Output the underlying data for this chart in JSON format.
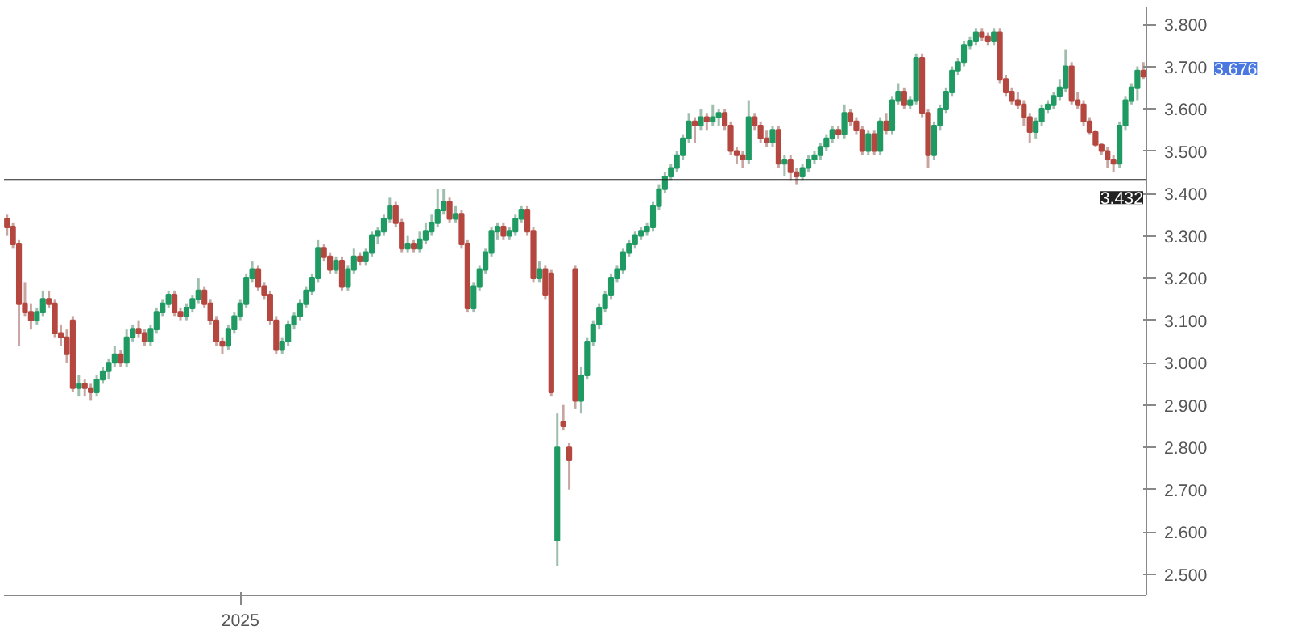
{
  "chart_data": {
    "type": "candlestick",
    "categories": [
      null,
      null,
      null,
      null,
      null,
      null,
      null,
      null,
      null,
      null,
      null,
      null,
      null,
      null,
      null,
      null,
      null,
      null,
      null,
      null,
      null,
      null,
      null,
      null,
      null,
      null,
      null,
      null,
      null,
      null,
      null,
      null,
      null,
      null,
      null,
      null,
      null,
      null,
      null,
      null,
      null,
      null,
      null,
      null,
      null,
      null,
      null,
      null,
      null,
      null,
      null,
      null,
      null,
      null,
      null,
      null,
      null,
      null,
      null,
      null,
      null,
      null,
      null,
      null,
      null,
      null,
      null,
      null,
      null,
      null,
      null,
      null,
      null,
      null,
      null,
      null,
      null,
      null,
      null,
      null,
      null,
      null,
      null,
      null,
      null,
      null,
      null,
      null,
      null,
      null,
      null,
      null,
      null,
      null,
      null,
      null,
      null,
      null,
      null,
      null,
      null,
      null,
      null,
      null,
      null,
      null,
      null,
      null,
      null,
      null,
      null,
      null,
      null,
      null,
      null,
      null,
      null,
      null,
      null,
      null,
      null,
      null,
      null,
      null,
      null,
      null,
      null,
      null,
      null,
      null,
      null,
      null,
      null,
      null,
      null,
      null,
      null,
      null,
      null,
      null,
      null,
      null,
      null,
      null,
      null,
      null,
      null,
      null,
      null,
      null,
      null,
      null,
      null,
      null,
      null,
      null,
      null,
      null,
      null,
      null,
      null,
      null,
      null,
      null,
      null,
      null,
      null,
      null,
      null,
      null,
      null,
      null,
      null,
      null,
      null,
      null,
      null,
      null,
      null,
      null,
      null,
      null,
      null,
      null,
      null,
      null,
      null,
      null,
      null,
      null,
      null
    ],
    "ohlc": [
      [
        3.34,
        3.35,
        3.3,
        3.32
      ],
      [
        3.32,
        3.33,
        3.27,
        3.28
      ],
      [
        3.28,
        3.29,
        3.04,
        3.14
      ],
      [
        3.14,
        3.19,
        3.11,
        3.12
      ],
      [
        3.12,
        3.14,
        3.08,
        3.1
      ],
      [
        3.1,
        3.13,
        3.09,
        3.12
      ],
      [
        3.12,
        3.17,
        3.11,
        3.15
      ],
      [
        3.15,
        3.17,
        3.13,
        3.14
      ],
      [
        3.14,
        3.15,
        3.06,
        3.07
      ],
      [
        3.07,
        3.09,
        3.04,
        3.06
      ],
      [
        3.06,
        3.08,
        3.0,
        3.02
      ],
      [
        3.1,
        3.11,
        2.93,
        2.94
      ],
      [
        2.94,
        2.97,
        2.92,
        2.95
      ],
      [
        2.95,
        2.96,
        2.92,
        2.94
      ],
      [
        2.94,
        2.95,
        2.91,
        2.93
      ],
      [
        2.93,
        2.97,
        2.92,
        2.96
      ],
      [
        2.96,
        2.99,
        2.95,
        2.98
      ],
      [
        2.98,
        3.01,
        2.96,
        3.0
      ],
      [
        3.0,
        3.04,
        2.99,
        3.02
      ],
      [
        3.02,
        3.03,
        2.99,
        3.0
      ],
      [
        3.0,
        3.08,
        2.99,
        3.06
      ],
      [
        3.06,
        3.09,
        3.05,
        3.08
      ],
      [
        3.08,
        3.1,
        3.06,
        3.07
      ],
      [
        3.07,
        3.08,
        3.04,
        3.05
      ],
      [
        3.05,
        3.09,
        3.04,
        3.08
      ],
      [
        3.08,
        3.13,
        3.07,
        3.12
      ],
      [
        3.12,
        3.15,
        3.11,
        3.14
      ],
      [
        3.14,
        3.17,
        3.13,
        3.16
      ],
      [
        3.16,
        3.17,
        3.11,
        3.12
      ],
      [
        3.12,
        3.13,
        3.1,
        3.11
      ],
      [
        3.11,
        3.14,
        3.1,
        3.13
      ],
      [
        3.13,
        3.16,
        3.12,
        3.15
      ],
      [
        3.15,
        3.2,
        3.14,
        3.17
      ],
      [
        3.17,
        3.18,
        3.13,
        3.14
      ],
      [
        3.14,
        3.15,
        3.09,
        3.1
      ],
      [
        3.1,
        3.11,
        3.04,
        3.05
      ],
      [
        3.05,
        3.06,
        3.02,
        3.04
      ],
      [
        3.04,
        3.09,
        3.03,
        3.08
      ],
      [
        3.08,
        3.12,
        3.07,
        3.11
      ],
      [
        3.11,
        3.15,
        3.1,
        3.14
      ],
      [
        3.14,
        3.21,
        3.13,
        3.2
      ],
      [
        3.2,
        3.24,
        3.19,
        3.22
      ],
      [
        3.22,
        3.23,
        3.17,
        3.18
      ],
      [
        3.18,
        3.19,
        3.15,
        3.16
      ],
      [
        3.16,
        3.17,
        3.09,
        3.1
      ],
      [
        3.1,
        3.11,
        3.02,
        3.03
      ],
      [
        3.03,
        3.06,
        3.02,
        3.05
      ],
      [
        3.05,
        3.1,
        3.04,
        3.09
      ],
      [
        3.09,
        3.12,
        3.08,
        3.11
      ],
      [
        3.11,
        3.15,
        3.1,
        3.14
      ],
      [
        3.14,
        3.18,
        3.13,
        3.17
      ],
      [
        3.17,
        3.21,
        3.16,
        3.2
      ],
      [
        3.2,
        3.29,
        3.19,
        3.27
      ],
      [
        3.27,
        3.28,
        3.24,
        3.25
      ],
      [
        3.25,
        3.26,
        3.21,
        3.22
      ],
      [
        3.22,
        3.25,
        3.21,
        3.24
      ],
      [
        3.24,
        3.25,
        3.17,
        3.18
      ],
      [
        3.18,
        3.23,
        3.17,
        3.22
      ],
      [
        3.22,
        3.27,
        3.21,
        3.25
      ],
      [
        3.25,
        3.26,
        3.23,
        3.24
      ],
      [
        3.24,
        3.27,
        3.23,
        3.26
      ],
      [
        3.26,
        3.31,
        3.25,
        3.3
      ],
      [
        3.3,
        3.32,
        3.28,
        3.31
      ],
      [
        3.31,
        3.35,
        3.3,
        3.34
      ],
      [
        3.34,
        3.39,
        3.33,
        3.37
      ],
      [
        3.37,
        3.38,
        3.32,
        3.33
      ],
      [
        3.33,
        3.34,
        3.26,
        3.27
      ],
      [
        3.27,
        3.3,
        3.26,
        3.28
      ],
      [
        3.28,
        3.29,
        3.26,
        3.27
      ],
      [
        3.27,
        3.31,
        3.26,
        3.29
      ],
      [
        3.29,
        3.33,
        3.28,
        3.31
      ],
      [
        3.31,
        3.35,
        3.3,
        3.33
      ],
      [
        3.33,
        3.41,
        3.32,
        3.36
      ],
      [
        3.36,
        3.41,
        3.35,
        3.38
      ],
      [
        3.38,
        3.39,
        3.33,
        3.34
      ],
      [
        3.34,
        3.37,
        3.33,
        3.35
      ],
      [
        3.35,
        3.36,
        3.27,
        3.28
      ],
      [
        3.28,
        3.29,
        3.12,
        3.13
      ],
      [
        3.13,
        3.19,
        3.12,
        3.18
      ],
      [
        3.18,
        3.23,
        3.17,
        3.22
      ],
      [
        3.22,
        3.27,
        3.21,
        3.26
      ],
      [
        3.26,
        3.32,
        3.25,
        3.31
      ],
      [
        3.31,
        3.33,
        3.29,
        3.32
      ],
      [
        3.32,
        3.33,
        3.29,
        3.3
      ],
      [
        3.3,
        3.32,
        3.29,
        3.31
      ],
      [
        3.31,
        3.35,
        3.3,
        3.34
      ],
      [
        3.34,
        3.37,
        3.33,
        3.36
      ],
      [
        3.36,
        3.37,
        3.3,
        3.31
      ],
      [
        3.31,
        3.32,
        3.19,
        3.2
      ],
      [
        3.2,
        3.24,
        3.19,
        3.22
      ],
      [
        3.22,
        3.23,
        3.15,
        3.16
      ],
      [
        3.21,
        3.22,
        2.92,
        2.93
      ],
      [
        2.58,
        2.88,
        2.52,
        2.8
      ],
      [
        2.86,
        2.9,
        2.84,
        2.85
      ],
      [
        2.8,
        2.81,
        2.7,
        2.77
      ],
      [
        3.22,
        3.23,
        2.89,
        2.91
      ],
      [
        2.91,
        2.99,
        2.88,
        2.97
      ],
      [
        2.97,
        3.06,
        2.96,
        3.05
      ],
      [
        3.05,
        3.1,
        3.04,
        3.09
      ],
      [
        3.09,
        3.14,
        3.08,
        3.13
      ],
      [
        3.13,
        3.17,
        3.12,
        3.16
      ],
      [
        3.16,
        3.21,
        3.15,
        3.2
      ],
      [
        3.2,
        3.23,
        3.19,
        3.22
      ],
      [
        3.22,
        3.27,
        3.21,
        3.26
      ],
      [
        3.26,
        3.29,
        3.25,
        3.28
      ],
      [
        3.28,
        3.31,
        3.27,
        3.3
      ],
      [
        3.3,
        3.32,
        3.29,
        3.31
      ],
      [
        3.31,
        3.33,
        3.3,
        3.32
      ],
      [
        3.32,
        3.38,
        3.31,
        3.37
      ],
      [
        3.37,
        3.42,
        3.36,
        3.41
      ],
      [
        3.41,
        3.45,
        3.4,
        3.44
      ],
      [
        3.44,
        3.47,
        3.43,
        3.46
      ],
      [
        3.46,
        3.5,
        3.45,
        3.49
      ],
      [
        3.49,
        3.54,
        3.48,
        3.53
      ],
      [
        3.53,
        3.59,
        3.52,
        3.57
      ],
      [
        3.57,
        3.58,
        3.52,
        3.56
      ],
      [
        3.56,
        3.6,
        3.55,
        3.58
      ],
      [
        3.58,
        3.59,
        3.55,
        3.57
      ],
      [
        3.57,
        3.61,
        3.56,
        3.58
      ],
      [
        3.58,
        3.6,
        3.56,
        3.59
      ],
      [
        3.59,
        3.6,
        3.55,
        3.56
      ],
      [
        3.56,
        3.57,
        3.49,
        3.5
      ],
      [
        3.5,
        3.51,
        3.47,
        3.49
      ],
      [
        3.49,
        3.5,
        3.46,
        3.48
      ],
      [
        3.48,
        3.62,
        3.47,
        3.58
      ],
      [
        3.58,
        3.59,
        3.55,
        3.56
      ],
      [
        3.56,
        3.57,
        3.52,
        3.53
      ],
      [
        3.53,
        3.55,
        3.51,
        3.52
      ],
      [
        3.52,
        3.56,
        3.51,
        3.55
      ],
      [
        3.55,
        3.56,
        3.46,
        3.47
      ],
      [
        3.47,
        3.49,
        3.44,
        3.48
      ],
      [
        3.48,
        3.49,
        3.43,
        3.45
      ],
      [
        3.45,
        3.46,
        3.42,
        3.44
      ],
      [
        3.44,
        3.47,
        3.43,
        3.46
      ],
      [
        3.46,
        3.49,
        3.45,
        3.48
      ],
      [
        3.48,
        3.5,
        3.47,
        3.49
      ],
      [
        3.49,
        3.52,
        3.48,
        3.51
      ],
      [
        3.51,
        3.54,
        3.5,
        3.53
      ],
      [
        3.53,
        3.56,
        3.52,
        3.55
      ],
      [
        3.55,
        3.56,
        3.53,
        3.54
      ],
      [
        3.54,
        3.61,
        3.53,
        3.59
      ],
      [
        3.59,
        3.6,
        3.56,
        3.57
      ],
      [
        3.57,
        3.58,
        3.54,
        3.55
      ],
      [
        3.55,
        3.56,
        3.49,
        3.5
      ],
      [
        3.5,
        3.55,
        3.49,
        3.54
      ],
      [
        3.54,
        3.55,
        3.49,
        3.5
      ],
      [
        3.5,
        3.58,
        3.49,
        3.57
      ],
      [
        3.57,
        3.59,
        3.54,
        3.55
      ],
      [
        3.55,
        3.63,
        3.54,
        3.62
      ],
      [
        3.62,
        3.66,
        3.61,
        3.64
      ],
      [
        3.64,
        3.65,
        3.6,
        3.61
      ],
      [
        3.61,
        3.63,
        3.6,
        3.62
      ],
      [
        3.62,
        3.73,
        3.61,
        3.72
      ],
      [
        3.72,
        3.73,
        3.58,
        3.59
      ],
      [
        3.59,
        3.6,
        3.46,
        3.49
      ],
      [
        3.49,
        3.57,
        3.48,
        3.56
      ],
      [
        3.56,
        3.61,
        3.55,
        3.6
      ],
      [
        3.6,
        3.65,
        3.59,
        3.64
      ],
      [
        3.64,
        3.7,
        3.63,
        3.69
      ],
      [
        3.69,
        3.72,
        3.68,
        3.71
      ],
      [
        3.71,
        3.76,
        3.7,
        3.75
      ],
      [
        3.75,
        3.77,
        3.74,
        3.76
      ],
      [
        3.76,
        3.79,
        3.75,
        3.78
      ],
      [
        3.78,
        3.79,
        3.76,
        3.77
      ],
      [
        3.77,
        3.78,
        3.75,
        3.76
      ],
      [
        3.76,
        3.79,
        3.75,
        3.78
      ],
      [
        3.78,
        3.79,
        3.66,
        3.67
      ],
      [
        3.67,
        3.68,
        3.63,
        3.64
      ],
      [
        3.64,
        3.65,
        3.61,
        3.62
      ],
      [
        3.62,
        3.64,
        3.6,
        3.61
      ],
      [
        3.61,
        3.62,
        3.56,
        3.58
      ],
      [
        3.58,
        3.59,
        3.52,
        3.545
      ],
      [
        3.545,
        3.58,
        3.53,
        3.57
      ],
      [
        3.57,
        3.61,
        3.56,
        3.6
      ],
      [
        3.6,
        3.62,
        3.59,
        3.61
      ],
      [
        3.61,
        3.64,
        3.6,
        3.63
      ],
      [
        3.63,
        3.67,
        3.62,
        3.65
      ],
      [
        3.65,
        3.74,
        3.64,
        3.7
      ],
      [
        3.7,
        3.71,
        3.61,
        3.62
      ],
      [
        3.62,
        3.64,
        3.6,
        3.61
      ],
      [
        3.61,
        3.62,
        3.56,
        3.57
      ],
      [
        3.57,
        3.58,
        3.54,
        3.545
      ],
      [
        3.545,
        3.55,
        3.51,
        3.515
      ],
      [
        3.515,
        3.52,
        3.49,
        3.5
      ],
      [
        3.5,
        3.51,
        3.46,
        3.48
      ],
      [
        3.48,
        3.49,
        3.45,
        3.47
      ],
      [
        3.47,
        3.57,
        3.46,
        3.56
      ],
      [
        3.56,
        3.63,
        3.55,
        3.62
      ],
      [
        3.62,
        3.66,
        3.61,
        3.65
      ],
      [
        3.65,
        3.7,
        3.62,
        3.69
      ],
      [
        3.69,
        3.71,
        3.67,
        3.676
      ]
    ],
    "ylim": [
      2.45,
      3.84
    ],
    "yticks": [
      {
        "value": 2.5,
        "label": "2.500"
      },
      {
        "value": 2.6,
        "label": "2.600"
      },
      {
        "value": 2.7,
        "label": "2.700"
      },
      {
        "value": 2.8,
        "label": "2.800"
      },
      {
        "value": 2.9,
        "label": "2.900"
      },
      {
        "value": 3.0,
        "label": "3.000"
      },
      {
        "value": 3.1,
        "label": "3.100"
      },
      {
        "value": 3.2,
        "label": "3.200"
      },
      {
        "value": 3.3,
        "label": "3.300"
      },
      {
        "value": 3.4,
        "label": "3.400"
      },
      {
        "value": 3.5,
        "label": "3.500"
      },
      {
        "value": 3.6,
        "label": "3.600"
      },
      {
        "value": 3.7,
        "label": "3.700"
      },
      {
        "value": 3.8,
        "label": "3.800"
      }
    ],
    "ref_lines": [
      {
        "axis": "y",
        "value": 3.432,
        "label": "3.432",
        "color": "#222222"
      }
    ],
    "annotations": [
      "3.676",
      "2025"
    ],
    "grid": false
  }
}
